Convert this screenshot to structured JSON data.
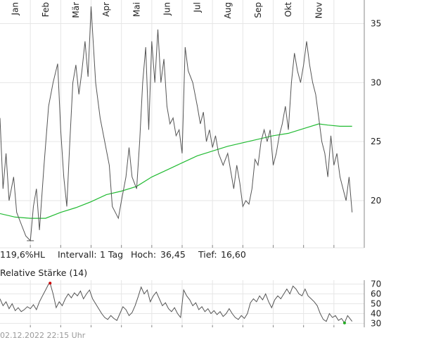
{
  "colors": {
    "price": "#555555",
    "ma": "#22bb33",
    "grid": "#e6e6e6",
    "axis": "#888888",
    "rsi_high": "#cc0000",
    "rsi_low": "#22aa22"
  },
  "stats": {
    "volatility": "119,6%HL",
    "interval_label": "Intervall:",
    "interval_value": "1 Tag",
    "high_label": "Hoch:",
    "high_value": "36,45",
    "low_label": "Tief:",
    "low_value": "16,60"
  },
  "footer": {
    "timestamp": "02.12.2022 22:15 Uhr"
  },
  "chart_data": [
    {
      "type": "line",
      "x_labels": [
        "Jan",
        "Feb",
        "Mär",
        "Apr",
        "Mai",
        "Jun",
        "Jul",
        "Aug",
        "Sep",
        "Okt",
        "Nov"
      ],
      "x_label_positions": [
        0.5,
        1.5,
        2.5,
        3.5,
        4.5,
        5.5,
        6.5,
        7.5,
        8.5,
        9.5,
        10.5
      ],
      "ylim": [
        16,
        37
      ],
      "y_ticks": [
        20,
        25,
        30,
        35
      ],
      "grid": true,
      "series": [
        {
          "role": "price",
          "anchors": [
            [
              0.0,
              27.0
            ],
            [
              0.1,
              21.0
            ],
            [
              0.2,
              24.0
            ],
            [
              0.3,
              20.0
            ],
            [
              0.45,
              22.0
            ],
            [
              0.55,
              19.0
            ],
            [
              0.7,
              18.0
            ],
            [
              0.85,
              17.0
            ],
            [
              1.0,
              16.6
            ],
            [
              1.1,
              19.5
            ],
            [
              1.2,
              21.0
            ],
            [
              1.3,
              17.5
            ],
            [
              1.45,
              23.0
            ],
            [
              1.6,
              28.0
            ],
            [
              1.75,
              30.0
            ],
            [
              1.9,
              31.6
            ],
            [
              2.0,
              26.0
            ],
            [
              2.1,
              22.0
            ],
            [
              2.2,
              19.5
            ],
            [
              2.3,
              25.0
            ],
            [
              2.4,
              30.0
            ],
            [
              2.5,
              31.5
            ],
            [
              2.6,
              29.0
            ],
            [
              2.7,
              31.0
            ],
            [
              2.8,
              33.5
            ],
            [
              2.9,
              30.5
            ],
            [
              3.0,
              36.45
            ],
            [
              3.15,
              30.0
            ],
            [
              3.3,
              27.0
            ],
            [
              3.45,
              25.0
            ],
            [
              3.6,
              23.0
            ],
            [
              3.7,
              19.5
            ],
            [
              3.8,
              19.0
            ],
            [
              3.9,
              18.5
            ],
            [
              4.0,
              20.0
            ],
            [
              4.15,
              22.0
            ],
            [
              4.25,
              24.5
            ],
            [
              4.35,
              22.0
            ],
            [
              4.5,
              21.0
            ],
            [
              4.6,
              25.0
            ],
            [
              4.7,
              30.0
            ],
            [
              4.8,
              33.0
            ],
            [
              4.9,
              26.0
            ],
            [
              5.0,
              33.5
            ],
            [
              5.1,
              30.0
            ],
            [
              5.2,
              34.5
            ],
            [
              5.3,
              30.0
            ],
            [
              5.4,
              32.0
            ],
            [
              5.5,
              28.0
            ],
            [
              5.6,
              26.5
            ],
            [
              5.7,
              27.0
            ],
            [
              5.8,
              25.5
            ],
            [
              5.9,
              26.0
            ],
            [
              6.0,
              24.0
            ],
            [
              6.1,
              33.0
            ],
            [
              6.2,
              31.0
            ],
            [
              6.35,
              30.0
            ],
            [
              6.5,
              28.0
            ],
            [
              6.6,
              26.5
            ],
            [
              6.7,
              27.5
            ],
            [
              6.8,
              25.0
            ],
            [
              6.9,
              26.0
            ],
            [
              7.0,
              24.5
            ],
            [
              7.1,
              25.5
            ],
            [
              7.2,
              24.0
            ],
            [
              7.35,
              23.0
            ],
            [
              7.5,
              24.0
            ],
            [
              7.6,
              22.5
            ],
            [
              7.7,
              21.0
            ],
            [
              7.8,
              23.0
            ],
            [
              7.9,
              21.5
            ],
            [
              8.0,
              19.5
            ],
            [
              8.1,
              20.0
            ],
            [
              8.2,
              19.7
            ],
            [
              8.3,
              21.0
            ],
            [
              8.4,
              23.5
            ],
            [
              8.5,
              23.0
            ],
            [
              8.6,
              25.0
            ],
            [
              8.7,
              26.0
            ],
            [
              8.8,
              25.0
            ],
            [
              8.9,
              26.0
            ],
            [
              9.0,
              23.0
            ],
            [
              9.1,
              24.0
            ],
            [
              9.2,
              25.5
            ],
            [
              9.3,
              26.5
            ],
            [
              9.4,
              28.0
            ],
            [
              9.5,
              26.0
            ],
            [
              9.6,
              30.0
            ],
            [
              9.7,
              32.5
            ],
            [
              9.8,
              31.0
            ],
            [
              9.9,
              30.0
            ],
            [
              10.0,
              31.5
            ],
            [
              10.1,
              33.5
            ],
            [
              10.2,
              31.5
            ],
            [
              10.3,
              30.0
            ],
            [
              10.4,
              29.0
            ],
            [
              10.5,
              27.0
            ],
            [
              10.6,
              25.0
            ],
            [
              10.7,
              24.0
            ],
            [
              10.8,
              22.0
            ],
            [
              10.9,
              25.5
            ],
            [
              11.0,
              23.0
            ],
            [
              11.1,
              24.0
            ],
            [
              11.2,
              22.0
            ],
            [
              11.3,
              21.0
            ],
            [
              11.4,
              20.0
            ],
            [
              11.5,
              22.0
            ],
            [
              11.6,
              19.0
            ]
          ]
        },
        {
          "role": "moving_average",
          "anchors": [
            [
              0.0,
              18.9
            ],
            [
              0.5,
              18.6
            ],
            [
              1.0,
              18.5
            ],
            [
              1.5,
              18.5
            ],
            [
              2.0,
              19.0
            ],
            [
              2.5,
              19.4
            ],
            [
              3.0,
              19.9
            ],
            [
              3.5,
              20.5
            ],
            [
              4.0,
              20.8
            ],
            [
              4.5,
              21.2
            ],
            [
              5.0,
              22.0
            ],
            [
              5.5,
              22.6
            ],
            [
              6.0,
              23.2
            ],
            [
              6.5,
              23.8
            ],
            [
              7.0,
              24.2
            ],
            [
              7.5,
              24.6
            ],
            [
              8.0,
              24.9
            ],
            [
              8.5,
              25.2
            ],
            [
              9.0,
              25.5
            ],
            [
              9.5,
              25.7
            ],
            [
              10.0,
              26.1
            ],
            [
              10.5,
              26.5
            ],
            [
              10.8,
              26.4
            ],
            [
              11.2,
              26.3
            ],
            [
              11.6,
              26.3
            ]
          ]
        }
      ]
    },
    {
      "type": "line",
      "title": "Relative Stärke (14)",
      "ylim": [
        26,
        74
      ],
      "y_ticks": [
        30,
        40,
        50,
        60,
        70
      ],
      "grid": true,
      "max_marker": [
        1.65,
        71.0
      ],
      "min_marker": [
        11.35,
        30.5
      ],
      "series": [
        {
          "role": "rsi",
          "anchors": [
            [
              0.0,
              55.0
            ],
            [
              0.1,
              48.0
            ],
            [
              0.2,
              52.0
            ],
            [
              0.3,
              45.0
            ],
            [
              0.4,
              50.0
            ],
            [
              0.5,
              43.0
            ],
            [
              0.6,
              46.0
            ],
            [
              0.7,
              42.0
            ],
            [
              0.8,
              44.0
            ],
            [
              0.9,
              47.0
            ],
            [
              1.0,
              45.0
            ],
            [
              1.1,
              49.0
            ],
            [
              1.2,
              44.0
            ],
            [
              1.3,
              52.0
            ],
            [
              1.4,
              58.0
            ],
            [
              1.5,
              64.0
            ],
            [
              1.6,
              70.0
            ],
            [
              1.65,
              71.0
            ],
            [
              1.75,
              60.0
            ],
            [
              1.85,
              46.0
            ],
            [
              1.95,
              52.0
            ],
            [
              2.05,
              48.0
            ],
            [
              2.15,
              55.0
            ],
            [
              2.25,
              60.0
            ],
            [
              2.35,
              56.0
            ],
            [
              2.45,
              61.0
            ],
            [
              2.55,
              58.0
            ],
            [
              2.65,
              63.0
            ],
            [
              2.75,
              55.0
            ],
            [
              2.85,
              60.0
            ],
            [
              2.95,
              64.0
            ],
            [
              3.05,
              55.0
            ],
            [
              3.15,
              50.0
            ],
            [
              3.25,
              45.0
            ],
            [
              3.35,
              40.0
            ],
            [
              3.45,
              36.0
            ],
            [
              3.55,
              34.0
            ],
            [
              3.65,
              38.0
            ],
            [
              3.75,
              35.0
            ],
            [
              3.85,
              33.0
            ],
            [
              3.95,
              40.0
            ],
            [
              4.05,
              47.0
            ],
            [
              4.15,
              44.0
            ],
            [
              4.25,
              38.0
            ],
            [
              4.35,
              41.0
            ],
            [
              4.45,
              48.0
            ],
            [
              4.55,
              57.0
            ],
            [
              4.65,
              67.0
            ],
            [
              4.75,
              60.0
            ],
            [
              4.85,
              64.0
            ],
            [
              4.95,
              52.0
            ],
            [
              5.05,
              58.0
            ],
            [
              5.15,
              62.0
            ],
            [
              5.25,
              55.0
            ],
            [
              5.35,
              48.0
            ],
            [
              5.45,
              51.0
            ],
            [
              5.55,
              45.0
            ],
            [
              5.65,
              42.0
            ],
            [
              5.75,
              46.0
            ],
            [
              5.85,
              40.0
            ],
            [
              5.95,
              36.0
            ],
            [
              6.05,
              64.0
            ],
            [
              6.15,
              58.0
            ],
            [
              6.25,
              54.0
            ],
            [
              6.35,
              48.0
            ],
            [
              6.45,
              51.0
            ],
            [
              6.55,
              44.0
            ],
            [
              6.65,
              47.0
            ],
            [
              6.75,
              42.0
            ],
            [
              6.85,
              45.0
            ],
            [
              6.95,
              40.0
            ],
            [
              7.05,
              43.0
            ],
            [
              7.15,
              39.0
            ],
            [
              7.25,
              42.0
            ],
            [
              7.35,
              37.0
            ],
            [
              7.45,
              40.0
            ],
            [
              7.55,
              45.0
            ],
            [
              7.65,
              40.0
            ],
            [
              7.75,
              36.0
            ],
            [
              7.85,
              34.0
            ],
            [
              7.95,
              38.0
            ],
            [
              8.05,
              35.0
            ],
            [
              8.15,
              40.0
            ],
            [
              8.25,
              51.0
            ],
            [
              8.35,
              55.0
            ],
            [
              8.45,
              52.0
            ],
            [
              8.55,
              58.0
            ],
            [
              8.65,
              54.0
            ],
            [
              8.75,
              60.0
            ],
            [
              8.85,
              52.0
            ],
            [
              8.95,
              46.0
            ],
            [
              9.05,
              54.0
            ],
            [
              9.15,
              58.0
            ],
            [
              9.25,
              55.0
            ],
            [
              9.35,
              60.0
            ],
            [
              9.45,
              65.0
            ],
            [
              9.55,
              60.0
            ],
            [
              9.65,
              68.0
            ],
            [
              9.75,
              65.0
            ],
            [
              9.85,
              60.0
            ],
            [
              9.95,
              58.0
            ],
            [
              10.05,
              65.0
            ],
            [
              10.15,
              58.0
            ],
            [
              10.25,
              55.0
            ],
            [
              10.35,
              52.0
            ],
            [
              10.45,
              48.0
            ],
            [
              10.55,
              40.0
            ],
            [
              10.65,
              34.0
            ],
            [
              10.75,
              32.0
            ],
            [
              10.85,
              40.0
            ],
            [
              10.95,
              36.0
            ],
            [
              11.05,
              38.0
            ],
            [
              11.15,
              33.0
            ],
            [
              11.25,
              35.0
            ],
            [
              11.35,
              30.5
            ],
            [
              11.45,
              38.0
            ],
            [
              11.55,
              34.0
            ],
            [
              11.6,
              32.0
            ]
          ]
        }
      ]
    }
  ]
}
